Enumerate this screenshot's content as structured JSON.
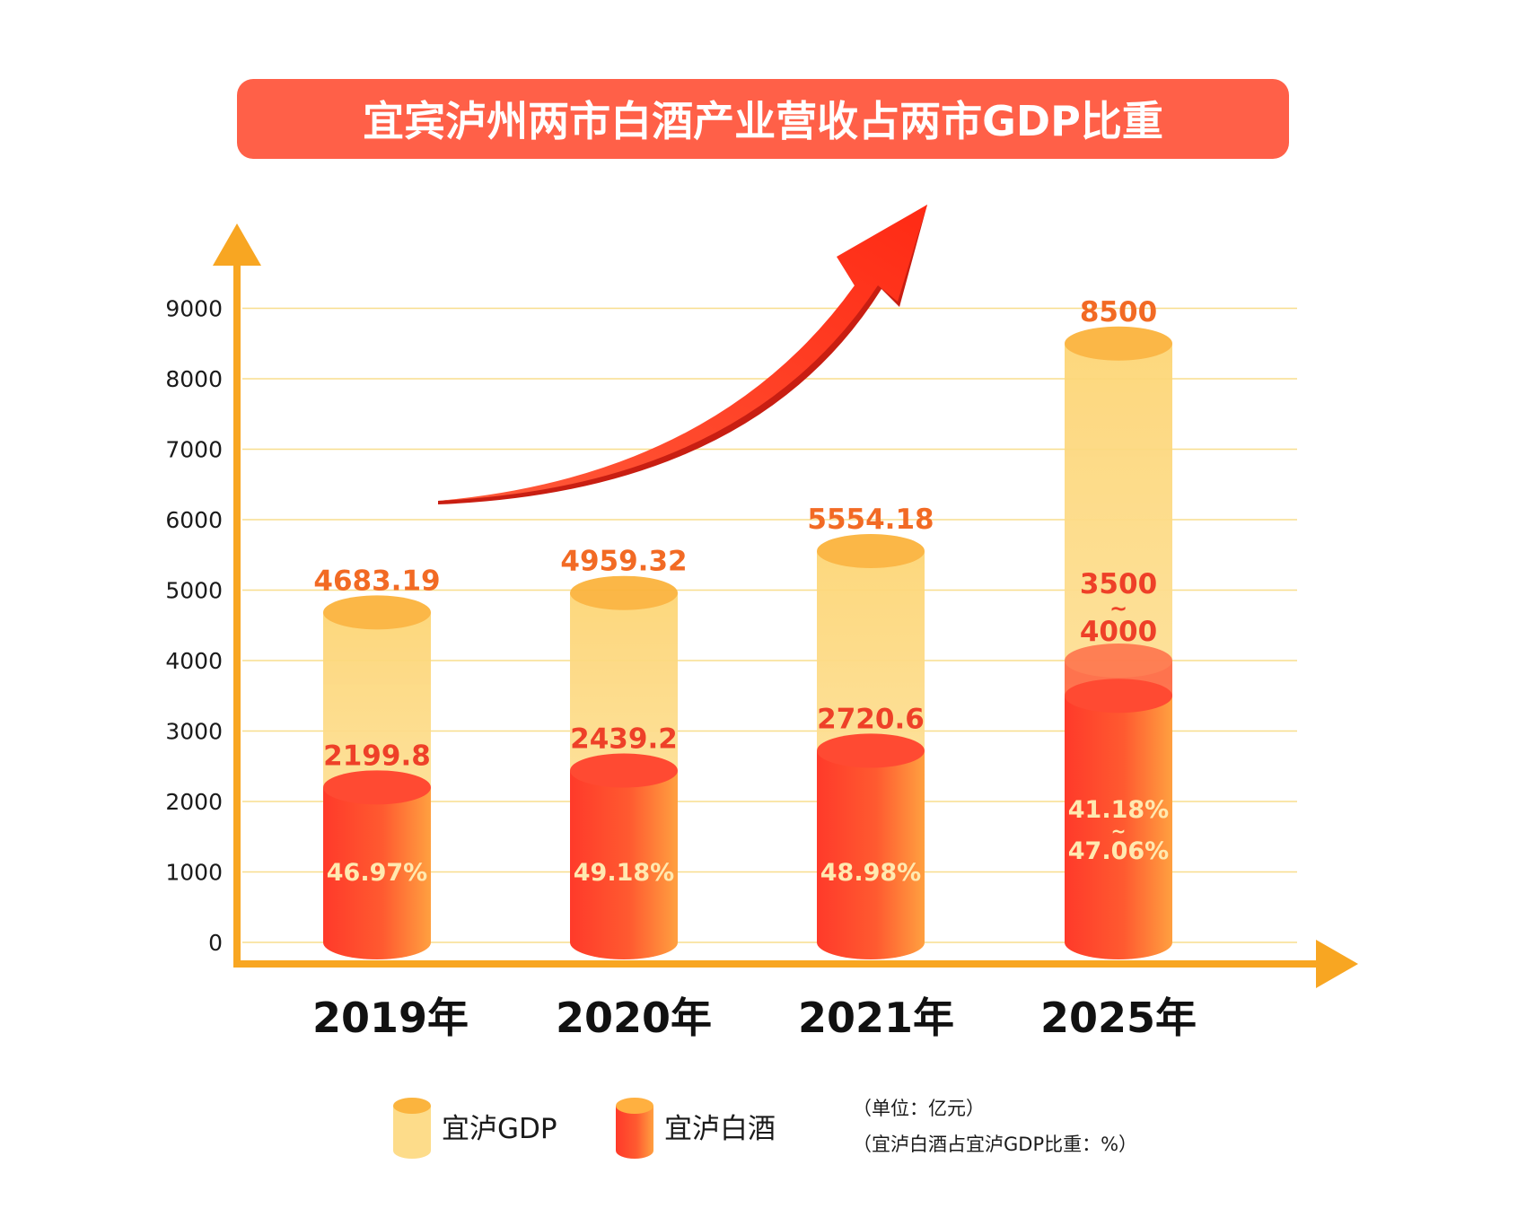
{
  "title": "宜宾泸州两市白酒产业营收占两市GDP比重",
  "colors": {
    "title_bg": "#FF6048",
    "axis": "#F8A622",
    "grid": "#F8DE8E",
    "gdp_body": "#FDD882",
    "gdp_top": "#FBB43E",
    "liquor_left": "#FF3A2A",
    "liquor_right": "#FFA040",
    "liquor_top": "#FF4A32",
    "label_orange": "#F26A24",
    "label_red": "#EE4028",
    "pct_text": "#FFE9B0",
    "arrow": "#FF3B22",
    "arrow_dark": "#C81E12"
  },
  "chart_data": {
    "type": "bar",
    "categories": [
      "2019年",
      "2020年",
      "2021年",
      "2025年"
    ],
    "series": [
      {
        "name": "宜泸GDP",
        "values": [
          4683.19,
          4959.32,
          5554.18,
          8500
        ],
        "labels": [
          "4683.19",
          "4959.32",
          "5554.18",
          "8500"
        ]
      },
      {
        "name": "宜泸白酒",
        "values": [
          2199.8,
          2439.2,
          2720.6,
          4000
        ],
        "range_low": [
          null,
          null,
          null,
          3500
        ],
        "labels": [
          "2199.8",
          "2439.2",
          "2720.6",
          "3500~4000"
        ]
      }
    ],
    "share_labels": [
      "46.97%",
      "49.18%",
      "48.98%",
      "41.18%~47.06%"
    ],
    "yticks": [
      0,
      1000,
      2000,
      3000,
      4000,
      5000,
      6000,
      7000,
      8000,
      9000
    ],
    "ylim": [
      0,
      9000
    ],
    "grid": true,
    "legend_position": "bottom",
    "notes": [
      "（单位：亿元）",
      "（宜泸白酒占宜泸GDP比重：%）"
    ]
  }
}
